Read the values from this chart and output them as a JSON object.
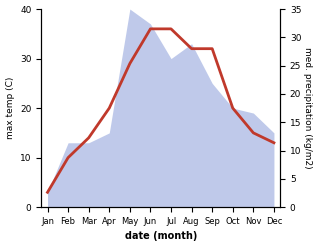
{
  "months": [
    "Jan",
    "Feb",
    "Mar",
    "Apr",
    "May",
    "Jun",
    "Jul",
    "Aug",
    "Sep",
    "Oct",
    "Nov",
    "Dec"
  ],
  "temp": [
    3,
    10,
    14,
    20,
    29,
    36,
    36,
    32,
    32,
    20,
    15,
    13
  ],
  "precip_left_scale": [
    3,
    13,
    13,
    15,
    40,
    37,
    30,
    33,
    25,
    20,
    19,
    15
  ],
  "temp_color": "#c0392b",
  "precip_fill_color": "#b8c4e8",
  "temp_ylim": [
    0,
    40
  ],
  "precip_ylim": [
    0,
    35
  ],
  "left_ylim": [
    0,
    40
  ],
  "xlabel": "date (month)",
  "ylabel_left": "max temp (C)",
  "ylabel_right": "med. precipitation (kg/m2)",
  "bg_color": "#ffffff",
  "temp_linewidth": 2.0,
  "yticks_left": [
    0,
    10,
    20,
    30,
    40
  ],
  "yticks_right": [
    0,
    5,
    10,
    15,
    20,
    25,
    30,
    35
  ]
}
